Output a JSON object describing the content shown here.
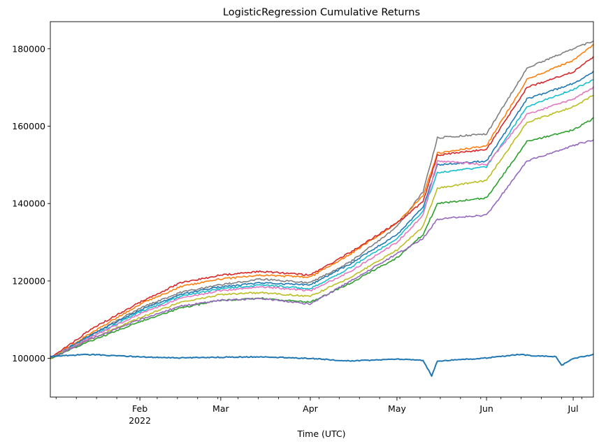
{
  "chart_data": {
    "type": "line",
    "title": "LogisticRegression Cumulative Returns",
    "xlabel": "Time (UTC)",
    "ylabel": "",
    "x_range": [
      "2022-01-01",
      "2022-07-08"
    ],
    "ylim": [
      90000,
      187000
    ],
    "grid": false,
    "legend": "none",
    "y_ticks": [
      {
        "value": 100000,
        "label": "100000"
      },
      {
        "value": 120000,
        "label": "120000"
      },
      {
        "value": 140000,
        "label": "140000"
      },
      {
        "value": 160000,
        "label": "160000"
      },
      {
        "value": 180000,
        "label": "180000"
      }
    ],
    "x_ticks": [
      {
        "date": "2022-02-01",
        "label": "Feb",
        "sublabel": "2022"
      },
      {
        "date": "2022-03-01",
        "label": "Mar",
        "sublabel": ""
      },
      {
        "date": "2022-04-01",
        "label": "Apr",
        "sublabel": ""
      },
      {
        "date": "2022-05-01",
        "label": "May",
        "sublabel": ""
      },
      {
        "date": "2022-06-01",
        "label": "Jun",
        "sublabel": ""
      },
      {
        "date": "2022-07-01",
        "label": "Jul",
        "sublabel": ""
      }
    ],
    "series": [
      {
        "color": "#7f7f7f",
        "x": [
          "2022-01-01",
          "2022-01-15",
          "2022-02-01",
          "2022-02-15",
          "2022-03-01",
          "2022-03-15",
          "2022-04-01",
          "2022-04-15",
          "2022-05-01",
          "2022-05-10",
          "2022-05-15",
          "2022-06-01",
          "2022-06-15",
          "2022-07-01",
          "2022-07-08"
        ],
        "y": [
          100000,
          106000,
          113000,
          117000,
          119000,
          120500,
          119500,
          125000,
          134000,
          143000,
          157000,
          158000,
          175000,
          180000,
          182000
        ]
      },
      {
        "color": "#ff7f0e",
        "x": [
          "2022-01-01",
          "2022-01-15",
          "2022-02-01",
          "2022-02-15",
          "2022-03-01",
          "2022-03-15",
          "2022-04-01",
          "2022-04-15",
          "2022-05-01",
          "2022-05-10",
          "2022-05-15",
          "2022-06-01",
          "2022-06-15",
          "2022-07-01",
          "2022-07-08"
        ],
        "y": [
          100000,
          106500,
          114000,
          118500,
          120500,
          121500,
          121000,
          127000,
          135000,
          142000,
          153000,
          155000,
          172000,
          177000,
          181000
        ]
      },
      {
        "color": "#d62728",
        "x": [
          "2022-01-01",
          "2022-01-15",
          "2022-02-01",
          "2022-02-15",
          "2022-03-01",
          "2022-03-15",
          "2022-04-01",
          "2022-04-15",
          "2022-05-01",
          "2022-05-10",
          "2022-05-15",
          "2022-06-01",
          "2022-06-15",
          "2022-07-01",
          "2022-07-08"
        ],
        "y": [
          100000,
          107500,
          114500,
          119500,
          121500,
          122500,
          121500,
          127500,
          135000,
          140500,
          152500,
          154000,
          170000,
          174000,
          178000
        ]
      },
      {
        "color": "#1f77b4",
        "x": [
          "2022-01-01",
          "2022-01-15",
          "2022-02-01",
          "2022-02-15",
          "2022-03-01",
          "2022-03-15",
          "2022-04-01",
          "2022-04-15",
          "2022-05-01",
          "2022-05-10",
          "2022-05-15",
          "2022-06-01",
          "2022-06-15",
          "2022-07-01",
          "2022-07-08"
        ],
        "y": [
          100000,
          106000,
          112500,
          116500,
          118500,
          119500,
          119000,
          124500,
          132000,
          139000,
          150000,
          151000,
          167000,
          171000,
          174000
        ]
      },
      {
        "color": "#17becf",
        "x": [
          "2022-01-01",
          "2022-01-15",
          "2022-02-01",
          "2022-02-15",
          "2022-03-01",
          "2022-03-15",
          "2022-04-01",
          "2022-04-15",
          "2022-05-01",
          "2022-05-10",
          "2022-05-15",
          "2022-06-01",
          "2022-06-15",
          "2022-07-01",
          "2022-07-08"
        ],
        "y": [
          100000,
          105500,
          112000,
          116000,
          118000,
          119000,
          118000,
          123500,
          131000,
          138000,
          148000,
          149500,
          165000,
          169500,
          172000
        ]
      },
      {
        "color": "#e377c2",
        "x": [
          "2022-01-01",
          "2022-01-15",
          "2022-02-01",
          "2022-02-15",
          "2022-03-01",
          "2022-03-15",
          "2022-04-01",
          "2022-04-15",
          "2022-05-01",
          "2022-05-10",
          "2022-05-15",
          "2022-06-01",
          "2022-06-15",
          "2022-07-01",
          "2022-07-08"
        ],
        "y": [
          100000,
          105500,
          111500,
          115500,
          117500,
          118500,
          117500,
          122500,
          130000,
          137000,
          151000,
          150000,
          163000,
          167000,
          170000
        ]
      },
      {
        "color": "#bcbd22",
        "x": [
          "2022-01-01",
          "2022-01-15",
          "2022-02-01",
          "2022-02-15",
          "2022-03-01",
          "2022-03-15",
          "2022-04-01",
          "2022-04-15",
          "2022-05-01",
          "2022-05-10",
          "2022-05-15",
          "2022-06-01",
          "2022-06-15",
          "2022-07-01",
          "2022-07-08"
        ],
        "y": [
          100000,
          105000,
          110500,
          114500,
          116500,
          117000,
          116000,
          121000,
          128000,
          134000,
          144000,
          146000,
          161000,
          165000,
          168000
        ]
      },
      {
        "color": "#2ca02c",
        "x": [
          "2022-01-01",
          "2022-01-15",
          "2022-02-01",
          "2022-02-15",
          "2022-03-01",
          "2022-03-15",
          "2022-04-01",
          "2022-04-15",
          "2022-05-01",
          "2022-05-10",
          "2022-05-15",
          "2022-06-01",
          "2022-06-15",
          "2022-07-01",
          "2022-07-08"
        ],
        "y": [
          100000,
          104500,
          109500,
          113000,
          115000,
          115500,
          114500,
          119500,
          126000,
          132000,
          140000,
          141500,
          156000,
          159000,
          162000
        ]
      },
      {
        "color": "#9467bd",
        "x": [
          "2022-01-01",
          "2022-01-15",
          "2022-02-01",
          "2022-02-15",
          "2022-03-01",
          "2022-03-15",
          "2022-04-01",
          "2022-04-15",
          "2022-05-01",
          "2022-05-10",
          "2022-05-15",
          "2022-06-01",
          "2022-06-15",
          "2022-07-01",
          "2022-07-08"
        ],
        "y": [
          100000,
          105000,
          110000,
          113500,
          115000,
          115500,
          114000,
          120000,
          127000,
          131000,
          136000,
          137000,
          151000,
          155000,
          156500
        ]
      },
      {
        "color": "#1f77b4",
        "x": [
          "2022-01-01",
          "2022-01-08",
          "2022-01-15",
          "2022-02-01",
          "2022-02-15",
          "2022-03-01",
          "2022-03-15",
          "2022-04-01",
          "2022-04-15",
          "2022-05-01",
          "2022-05-10",
          "2022-05-13",
          "2022-05-15",
          "2022-06-01",
          "2022-06-12",
          "2022-06-15",
          "2022-06-25",
          "2022-06-27",
          "2022-07-01",
          "2022-07-08"
        ],
        "y": [
          100500,
          100800,
          101000,
          100400,
          100100,
          100300,
          100400,
          100000,
          99300,
          99800,
          99500,
          95500,
          99300,
          100100,
          101000,
          100800,
          100400,
          98200,
          100000,
          101000
        ]
      }
    ]
  }
}
